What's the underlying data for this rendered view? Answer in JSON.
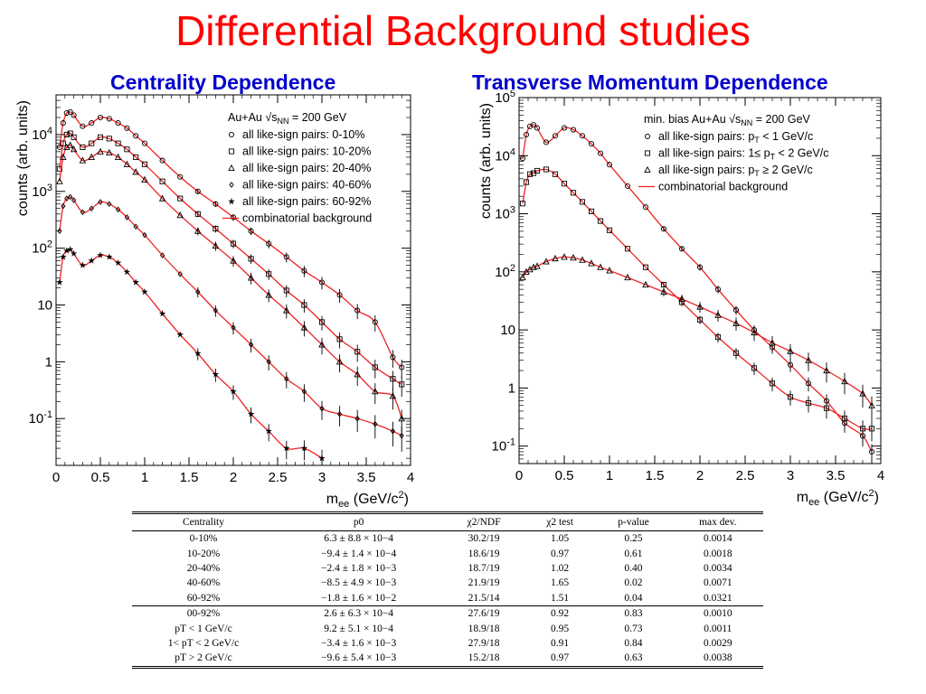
{
  "title": "Differential Background studies",
  "subtitle_left": "Centrality Dependence",
  "subtitle_right": "Transverse Momentum Dependence",
  "colors": {
    "title": "#ff0000",
    "subtitle": "#0000cc",
    "fit_line": "#ee2222",
    "marker": "#000000"
  },
  "chart_data": [
    {
      "type": "scatter",
      "panel": "left",
      "legend_title": "Au+Au √sNN = 200 GeV",
      "legend_position": "top-right",
      "xlabel": "mee (GeV/c2)",
      "ylabel": "counts (arb. units)",
      "xlim": [
        0,
        4
      ],
      "ylim": [
        0.015,
        50000
      ],
      "yscale": "log",
      "x_ticks": [
        "0",
        "0.5",
        "1",
        "1.5",
        "2",
        "2.5",
        "3",
        "3.5",
        "4"
      ],
      "y_ticks": [
        "10-1",
        "1",
        "10",
        "102",
        "103",
        "104"
      ],
      "fit_name": "combinatorial background",
      "series": [
        {
          "name": "all like-sign pairs: 0-10%",
          "marker": "circle",
          "x": [
            0.04,
            0.08,
            0.12,
            0.16,
            0.2,
            0.3,
            0.4,
            0.5,
            0.6,
            0.7,
            0.8,
            0.9,
            1.0,
            1.2,
            1.4,
            1.6,
            1.8,
            2.0,
            2.2,
            2.4,
            2.6,
            2.8,
            3.0,
            3.2,
            3.4,
            3.6,
            3.8,
            3.9
          ],
          "y": [
            6000,
            16000,
            24000,
            25000,
            22000,
            14000,
            16000,
            20000,
            19000,
            16000,
            13000,
            9500,
            7000,
            3500,
            1800,
            1000,
            600,
            350,
            200,
            120,
            70,
            40,
            25,
            15,
            8,
            5,
            1.2,
            0.8
          ]
        },
        {
          "name": "all like-sign pairs: 10-20%",
          "marker": "square",
          "x": [
            0.04,
            0.08,
            0.12,
            0.16,
            0.2,
            0.3,
            0.4,
            0.5,
            0.6,
            0.7,
            0.8,
            0.9,
            1.0,
            1.2,
            1.4,
            1.6,
            1.8,
            2.0,
            2.2,
            2.4,
            2.6,
            2.8,
            3.0,
            3.2,
            3.4,
            3.6,
            3.8,
            3.9
          ],
          "y": [
            2500,
            7000,
            10000,
            10500,
            9000,
            6000,
            7000,
            9000,
            8500,
            7000,
            5500,
            4000,
            3000,
            1500,
            750,
            400,
            220,
            120,
            65,
            35,
            18,
            10,
            5,
            2.5,
            1.5,
            0.8,
            0.5,
            0.4
          ]
        },
        {
          "name": "all like-sign pairs: 20-40%",
          "marker": "triangle",
          "x": [
            0.04,
            0.08,
            0.12,
            0.16,
            0.2,
            0.3,
            0.4,
            0.5,
            0.6,
            0.7,
            0.8,
            0.9,
            1.0,
            1.2,
            1.4,
            1.6,
            1.8,
            2.0,
            2.2,
            2.4,
            2.6,
            2.8,
            3.0,
            3.2,
            3.4,
            3.6,
            3.8,
            3.9
          ],
          "y": [
            1500,
            4000,
            6000,
            6500,
            5500,
            3500,
            4000,
            5000,
            4800,
            4000,
            3000,
            2200,
            1600,
            750,
            380,
            200,
            110,
            60,
            30,
            15,
            8,
            4,
            2,
            1,
            0.6,
            0.3,
            0.25,
            0.1
          ]
        },
        {
          "name": "all like-sign pairs: 40-60%",
          "marker": "diamond",
          "x": [
            0.04,
            0.08,
            0.12,
            0.16,
            0.2,
            0.3,
            0.4,
            0.5,
            0.6,
            0.7,
            0.8,
            0.9,
            1.0,
            1.2,
            1.4,
            1.6,
            1.8,
            2.0,
            2.2,
            2.4,
            2.6,
            2.8,
            3.0,
            3.2,
            3.4,
            3.6,
            3.8,
            3.9
          ],
          "y": [
            200,
            550,
            750,
            800,
            700,
            430,
            500,
            650,
            600,
            480,
            350,
            240,
            170,
            75,
            35,
            17,
            8,
            4,
            2,
            1,
            0.5,
            0.3,
            0.15,
            0.12,
            0.1,
            0.08,
            0.06,
            0.05
          ]
        },
        {
          "name": "all like-sign pairs: 60-92%",
          "marker": "star",
          "x": [
            0.04,
            0.08,
            0.12,
            0.16,
            0.2,
            0.3,
            0.4,
            0.5,
            0.6,
            0.7,
            0.8,
            0.9,
            1.0,
            1.2,
            1.4,
            1.6,
            1.8,
            2.0,
            2.2,
            2.4,
            2.6,
            2.8,
            3.0
          ],
          "y": [
            25,
            70,
            90,
            95,
            80,
            50,
            60,
            75,
            70,
            55,
            38,
            25,
            17,
            7,
            3,
            1.4,
            0.6,
            0.3,
            0.12,
            0.06,
            0.03,
            0.03,
            0.02
          ]
        }
      ]
    },
    {
      "type": "scatter",
      "panel": "right",
      "legend_title": "min. bias Au+Au √sNN = 200 GeV",
      "legend_position": "top-right",
      "xlabel": "mee (GeV/c2)",
      "ylabel": "counts (arb. units)",
      "xlim": [
        0,
        4
      ],
      "ylim": [
        0.05,
        100000
      ],
      "yscale": "log",
      "x_ticks": [
        "0",
        "0.5",
        "1",
        "1.5",
        "2",
        "2.5",
        "3",
        "3.5",
        "4"
      ],
      "y_ticks": [
        "10-1",
        "1",
        "10",
        "102",
        "103",
        "104",
        "105"
      ],
      "fit_name": "combinatorial background",
      "series": [
        {
          "name": "all like-sign pairs: pT < 1 GeV/c",
          "marker": "circle",
          "x": [
            0.04,
            0.08,
            0.12,
            0.16,
            0.2,
            0.3,
            0.4,
            0.5,
            0.6,
            0.7,
            0.8,
            0.9,
            1.0,
            1.2,
            1.4,
            1.6,
            1.8,
            2.0,
            2.2,
            2.4,
            2.6,
            2.8,
            3.0,
            3.2,
            3.4,
            3.6,
            3.8,
            3.9
          ],
          "y": [
            9000,
            23000,
            32000,
            34000,
            30000,
            17000,
            22000,
            30000,
            28000,
            22000,
            16000,
            11000,
            7000,
            3000,
            1300,
            550,
            250,
            120,
            50,
            22,
            10,
            5,
            2.5,
            1.2,
            0.6,
            0.25,
            0.15,
            0.08
          ]
        },
        {
          "name": "all like-sign pairs: 1≤ pT < 2 GeV/c",
          "marker": "square",
          "x": [
            0.04,
            0.08,
            0.12,
            0.16,
            0.2,
            0.3,
            0.4,
            0.5,
            0.6,
            0.7,
            0.8,
            0.9,
            1.0,
            1.2,
            1.4,
            1.6,
            1.8,
            2.0,
            2.2,
            2.4,
            2.6,
            2.8,
            3.0,
            3.2,
            3.4,
            3.6,
            3.8,
            3.9
          ],
          "y": [
            1500,
            3500,
            4800,
            5000,
            5500,
            5800,
            4800,
            3300,
            2300,
            1600,
            1100,
            750,
            520,
            250,
            120,
            60,
            30,
            15,
            7.5,
            4,
            2.2,
            1.2,
            0.7,
            0.55,
            0.45,
            0.3,
            0.2,
            0.2
          ]
        },
        {
          "name": "all like-sign pairs: pT ≥ 2 GeV/c",
          "marker": "triangle",
          "x": [
            0.04,
            0.08,
            0.12,
            0.16,
            0.2,
            0.3,
            0.4,
            0.5,
            0.6,
            0.7,
            0.8,
            0.9,
            1.0,
            1.2,
            1.4,
            1.6,
            1.8,
            2.0,
            2.2,
            2.4,
            2.6,
            2.8,
            3.0,
            3.2,
            3.4,
            3.6,
            3.8,
            3.9
          ],
          "y": [
            80,
            100,
            110,
            120,
            125,
            150,
            170,
            180,
            175,
            160,
            140,
            120,
            105,
            80,
            60,
            45,
            34,
            25,
            18,
            13,
            9,
            6,
            4.3,
            3,
            2,
            1.3,
            0.8,
            0.5
          ]
        }
      ]
    }
  ],
  "table": {
    "headers": [
      "Centrality",
      "p0",
      "χ2/NDF",
      "χ2 test",
      "p-value",
      "max dev."
    ],
    "rows": [
      [
        "0-10%",
        "6.3 ± 8.8 × 10−4",
        "30.2/19",
        "1.05",
        "0.25",
        "0.0014"
      ],
      [
        "10-20%",
        "−9.4 ± 1.4 × 10−4",
        "18.6/19",
        "0.97",
        "0.61",
        "0.0018"
      ],
      [
        "20-40%",
        "−2.4 ± 1.8 × 10−3",
        "18.7/19",
        "1.02",
        "0.40",
        "0.0034"
      ],
      [
        "40-60%",
        "−8.5 ± 4.9 × 10−3",
        "21.9/19",
        "1.65",
        "0.02",
        "0.0071"
      ],
      [
        "60-92%",
        "−1.8 ± 1.6 × 10−2",
        "21.5/14",
        "1.51",
        "0.04",
        "0.0321"
      ],
      [
        "00-92%",
        "2.6 ± 6.3 × 10−4",
        "27.6/19",
        "0.92",
        "0.83",
        "0.0010"
      ],
      [
        "pT < 1 GeV/c",
        "9.2 ± 5.1 × 10−4",
        "18.9/18",
        "0.95",
        "0.73",
        "0.0011"
      ],
      [
        "1< pT < 2 GeV/c",
        "−3.4 ± 1.6 × 10−3",
        "27.9/18",
        "0.91",
        "0.84",
        "0.0029"
      ],
      [
        "pT > 2 GeV/c",
        "−9.6 ± 5.4 × 10−3",
        "15.2/18",
        "0.97",
        "0.63",
        "0.0038"
      ]
    ]
  }
}
